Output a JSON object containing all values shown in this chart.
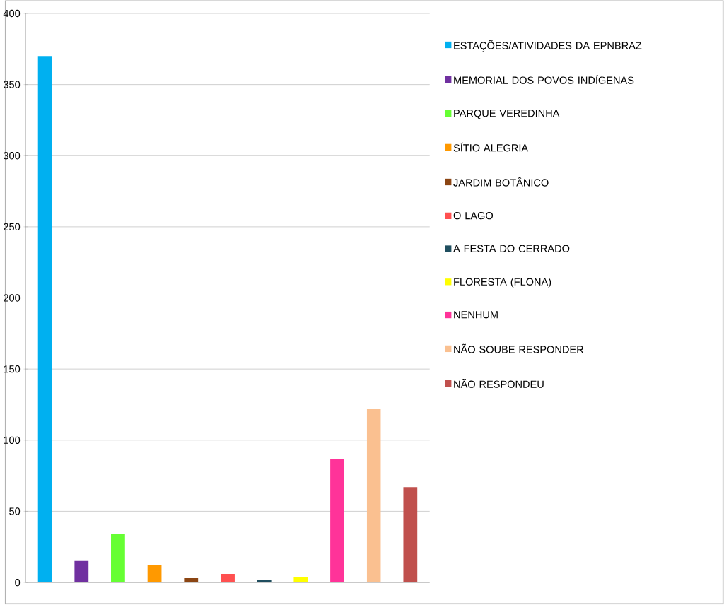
{
  "chart_data": {
    "type": "bar",
    "categories": [
      null
    ],
    "series": [
      {
        "name": "ESTAÇÕES/ATIVIDADES DA EPNBRAZ",
        "color": "#00b0f0",
        "values": [
          370
        ]
      },
      {
        "name": "MEMORIAL DOS POVOS INDÍGENAS",
        "color": "#7030a0",
        "values": [
          15
        ]
      },
      {
        "name": "PARQUE VEREDINHA",
        "color": "#66ff33",
        "values": [
          34
        ]
      },
      {
        "name": "SÍTIO ALEGRIA",
        "color": "#ff9900",
        "values": [
          12
        ]
      },
      {
        "name": "JARDIM BOTÂNICO",
        "color": "#8b4513",
        "values": [
          3
        ]
      },
      {
        "name": "O LAGO",
        "color": "#ff5050",
        "values": [
          6
        ]
      },
      {
        "name": "A FESTA DO CERRADO",
        "color": "#1f4e5f",
        "values": [
          2
        ]
      },
      {
        "name": "FLORESTA (FLONA)",
        "color": "#ffff00",
        "values": [
          4
        ]
      },
      {
        "name": "NENHUM",
        "color": "#ff3399",
        "values": [
          87
        ]
      },
      {
        "name": "NÃO SOUBE RESPONDER",
        "color": "#fac090",
        "values": [
          122
        ]
      },
      {
        "name": "NÃO RESPONDEU",
        "color": "#c0504d",
        "values": [
          67
        ]
      }
    ],
    "ylim": [
      0,
      400
    ],
    "yticks": [
      0,
      50,
      100,
      150,
      200,
      250,
      300,
      350,
      400
    ],
    "grid": "y",
    "legend": "right"
  }
}
